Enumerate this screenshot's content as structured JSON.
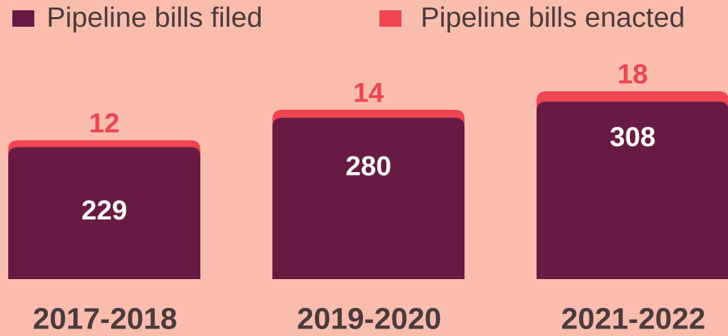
{
  "chart_data": {
    "type": "stacked_bar",
    "categories": [
      "2017-2018",
      "2019-2020",
      "2021-2022"
    ],
    "series": [
      {
        "name": "Pipeline bills filed",
        "color": "#671a42",
        "values": [
          229,
          280,
          308
        ]
      },
      {
        "name": "Pipeline bills enacted",
        "color": "#ef4452",
        "values": [
          12,
          14,
          18
        ]
      }
    ],
    "legend": "top"
  }
}
